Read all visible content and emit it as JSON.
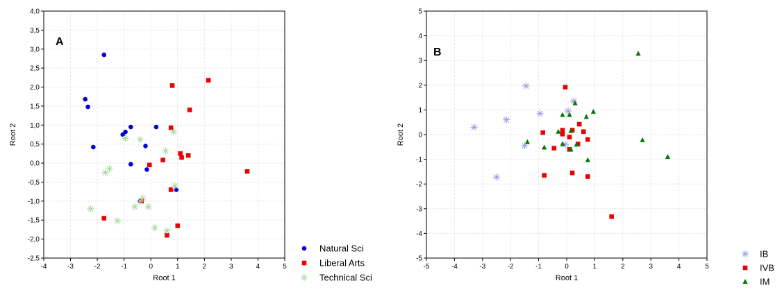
{
  "chart_data": [
    {
      "type": "scatter",
      "panel_label": "A",
      "xlabel": "Root 1",
      "ylabel": "Root 2",
      "xlim": [
        -4,
        5
      ],
      "ylim": [
        -2.5,
        4.0
      ],
      "x_ticks": [
        -4,
        -3,
        -2,
        -1,
        0,
        1,
        2,
        3,
        4,
        5
      ],
      "x_tick_labels": [
        "-4",
        "-3",
        "-2",
        "-1",
        "0",
        "1",
        "2",
        "3",
        "4",
        "5"
      ],
      "y_ticks": [
        -2.5,
        -2.0,
        -1.5,
        -1.0,
        -0.5,
        0.0,
        0.5,
        1.0,
        1.5,
        2.0,
        2.5,
        3.0,
        3.5,
        4.0
      ],
      "y_tick_labels": [
        "-2,5",
        "-2,0",
        "-1,5",
        "-1,0",
        "-0,5",
        "0,0",
        "0,5",
        "1,0",
        "1,5",
        "2,0",
        "2,5",
        "3,0",
        "3,5",
        "4,0"
      ],
      "grid": true,
      "legend_position": "outside-right-bottom",
      "series": [
        {
          "name": "Natural Sci",
          "marker": "circle",
          "color": "#0000dd",
          "points": [
            [
              -1.75,
              2.85
            ],
            [
              -2.45,
              1.68
            ],
            [
              -2.35,
              1.48
            ],
            [
              -0.75,
              0.95
            ],
            [
              0.2,
              0.95
            ],
            [
              -0.95,
              0.82
            ],
            [
              -1.05,
              0.75
            ],
            [
              -2.15,
              0.42
            ],
            [
              -0.2,
              0.45
            ],
            [
              -0.75,
              -0.03
            ],
            [
              -0.15,
              -0.17
            ],
            [
              0.95,
              -0.7
            ],
            [
              -0.4,
              -1.0
            ]
          ]
        },
        {
          "name": "Liberal Arts",
          "marker": "square",
          "color": "#ee0000",
          "points": [
            [
              0.8,
              2.04
            ],
            [
              2.15,
              2.18
            ],
            [
              1.45,
              1.4
            ],
            [
              0.75,
              0.93
            ],
            [
              1.1,
              0.25
            ],
            [
              1.4,
              0.2
            ],
            [
              1.15,
              0.15
            ],
            [
              0.45,
              0.08
            ],
            [
              -0.05,
              -0.05
            ],
            [
              3.6,
              -0.22
            ],
            [
              0.75,
              -0.7
            ],
            [
              -0.35,
              -1.0
            ],
            [
              -1.75,
              -1.45
            ],
            [
              1.0,
              -1.65
            ],
            [
              0.6,
              -1.9
            ]
          ]
        },
        {
          "name": "Technical Sci",
          "marker": "asterisk",
          "color": "#a8d7a0",
          "points": [
            [
              0.85,
              0.82
            ],
            [
              -0.95,
              0.65
            ],
            [
              -0.4,
              0.62
            ],
            [
              0.55,
              0.32
            ],
            [
              -1.55,
              -0.15
            ],
            [
              -1.7,
              -0.25
            ],
            [
              0.9,
              -0.6
            ],
            [
              -0.3,
              -0.92
            ],
            [
              -0.4,
              -1.0
            ],
            [
              -0.6,
              -1.15
            ],
            [
              -0.1,
              -1.15
            ],
            [
              -2.25,
              -1.2
            ],
            [
              -1.25,
              -1.52
            ],
            [
              0.15,
              -1.7
            ],
            [
              0.6,
              -1.78
            ]
          ]
        }
      ]
    },
    {
      "type": "scatter",
      "panel_label": "B",
      "xlabel": "Root 1",
      "ylabel": "Root 2",
      "xlim": [
        -5,
        5
      ],
      "ylim": [
        -5,
        5
      ],
      "x_ticks": [
        -5,
        -4,
        -3,
        -2,
        -1,
        0,
        1,
        2,
        3,
        4,
        5
      ],
      "x_tick_labels": [
        "-5",
        "-4",
        "-3",
        "-2",
        "-1",
        "0",
        "1",
        "2",
        "3",
        "4",
        "5"
      ],
      "y_ticks": [
        -5,
        -4,
        -3,
        -2,
        -1,
        0,
        1,
        2,
        3,
        4,
        5
      ],
      "y_tick_labels": [
        "-5",
        "-4",
        "-3",
        "-2",
        "-1",
        "0",
        "1",
        "2",
        "3",
        "4",
        "5"
      ],
      "grid": true,
      "legend_position": "outside-right-bottom",
      "series": [
        {
          "name": "IB",
          "marker": "asterisk",
          "color": "#9a9ae6",
          "points": [
            [
              -1.45,
              1.97
            ],
            [
              0.25,
              1.35
            ],
            [
              -0.95,
              0.85
            ],
            [
              0.05,
              0.95
            ],
            [
              -2.15,
              0.6
            ],
            [
              -3.3,
              0.3
            ],
            [
              -1.5,
              -0.45
            ],
            [
              -0.05,
              -0.4
            ],
            [
              -2.5,
              -1.72
            ]
          ]
        },
        {
          "name": "IVB",
          "marker": "square",
          "color": "#ee0000",
          "points": [
            [
              -0.05,
              1.92
            ],
            [
              0.45,
              0.42
            ],
            [
              0.6,
              0.12
            ],
            [
              0.2,
              0.18
            ],
            [
              -0.15,
              0.18
            ],
            [
              -0.85,
              0.08
            ],
            [
              -0.15,
              0.02
            ],
            [
              0.1,
              -0.1
            ],
            [
              0.75,
              -0.2
            ],
            [
              0.4,
              -0.38
            ],
            [
              -0.45,
              -0.55
            ],
            [
              0.1,
              -0.6
            ],
            [
              -0.8,
              -1.65
            ],
            [
              0.2,
              -1.55
            ],
            [
              0.75,
              -1.7
            ],
            [
              1.6,
              -3.32
            ]
          ]
        },
        {
          "name": "IM",
          "marker": "triangle",
          "color": "#007a00",
          "points": [
            [
              2.55,
              3.28
            ],
            [
              0.3,
              1.27
            ],
            [
              0.95,
              0.93
            ],
            [
              -0.15,
              0.8
            ],
            [
              0.1,
              0.8
            ],
            [
              0.7,
              0.72
            ],
            [
              -1.4,
              -0.3
            ],
            [
              -0.8,
              -0.52
            ],
            [
              -0.15,
              -0.38
            ],
            [
              0.15,
              0.15
            ],
            [
              -0.3,
              0.12
            ],
            [
              0.35,
              -0.4
            ],
            [
              0.15,
              -0.6
            ],
            [
              0.75,
              -1.03
            ],
            [
              2.7,
              -0.22
            ],
            [
              3.6,
              -0.9
            ]
          ]
        }
      ]
    }
  ]
}
